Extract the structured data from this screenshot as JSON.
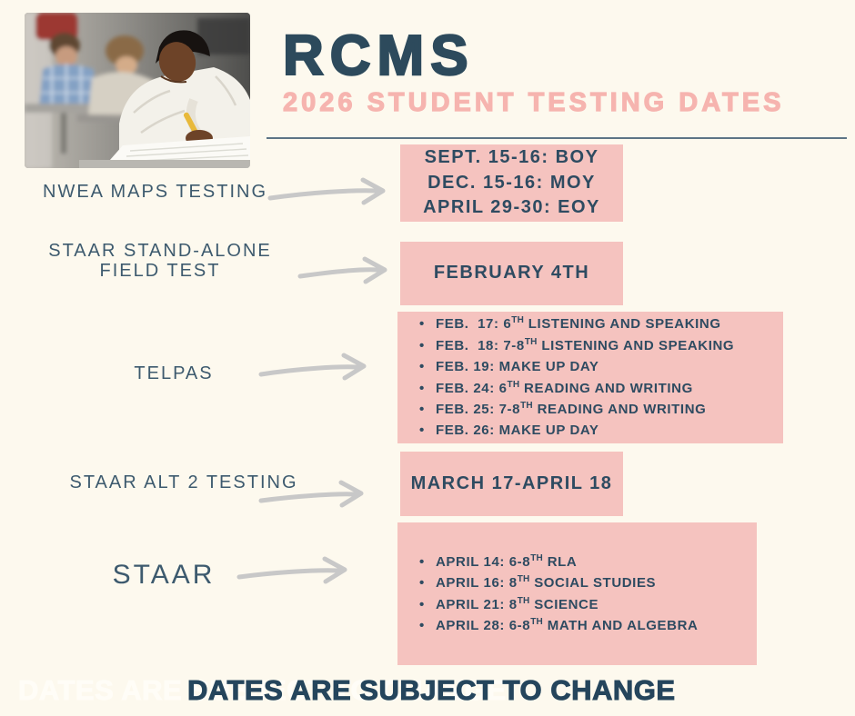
{
  "colors": {
    "background": "#fdf9ee",
    "box_pink": "#f5c3bf",
    "subtitle_pink": "#f6b4af",
    "title_navy": "#2d4a5c",
    "box_text_navy": "#2e4b61",
    "label_navy": "#3d5a6e",
    "arrow_gray": "#c8c8c8",
    "divider_slate": "#5d7486",
    "footer_navy": "#25455c",
    "footer_ghost_white": "#fffdf7"
  },
  "header": {
    "title": "RCMS",
    "subtitle": "2026 STUDENT TESTING DATES"
  },
  "photo": {
    "description": "Students taking a test in a classroom; foreground student writing with a yellow pencil"
  },
  "rows": [
    {
      "label_lines": [
        "NWEA MAPS TESTING"
      ],
      "arrow_icon": "right-arrow",
      "box_lines": [
        "SEPT. 15-16: BOY",
        "DEC. 15-16: MOY",
        "APRIL 29-30: EOY"
      ]
    },
    {
      "label_lines": [
        "STAAR STAND-ALONE",
        "FIELD TEST"
      ],
      "arrow_icon": "right-arrow",
      "box_lines": [
        "FEBRUARY 4TH"
      ]
    },
    {
      "label_lines": [
        "TELPAS"
      ],
      "arrow_icon": "right-arrow",
      "box_bullets": [
        [
          "FEB.  17: 6",
          "TH",
          " LISTENING AND SPEAKING"
        ],
        [
          "FEB.  18: 7-8",
          "TH",
          " LISTENING AND SPEAKING"
        ],
        [
          "FEB. 19: MAKE UP DAY"
        ],
        [
          "FEB. 24: 6",
          "TH",
          " READING AND WRITING"
        ],
        [
          "FEB. 25: 7-8",
          "TH",
          " READING AND WRITING"
        ],
        [
          "FEB. 26: MAKE UP DAY"
        ]
      ]
    },
    {
      "label_lines": [
        "STAAR ALT 2 TESTING"
      ],
      "arrow_icon": "right-arrow",
      "box_lines": [
        "MARCH 17-APRIL 18"
      ]
    },
    {
      "label_lines": [
        "STAAR"
      ],
      "arrow_icon": "right-arrow",
      "box_bullets": [
        [
          "APRIL 14: 6-8",
          "TH",
          " RLA"
        ],
        [
          "APRIL 16: 8",
          "TH",
          " SOCIAL STUDIES"
        ],
        [
          "APRIL 21: 8",
          "TH",
          " SCIENCE"
        ],
        [
          "APRIL 28: 6-8",
          "TH",
          " MATH AND ALGEBRA"
        ]
      ]
    }
  ],
  "footer": {
    "text": "DATES ARE SUBJECT TO CHANGE",
    "ghost_text": "DATES ARE SUBJECT TO CHANGE"
  }
}
